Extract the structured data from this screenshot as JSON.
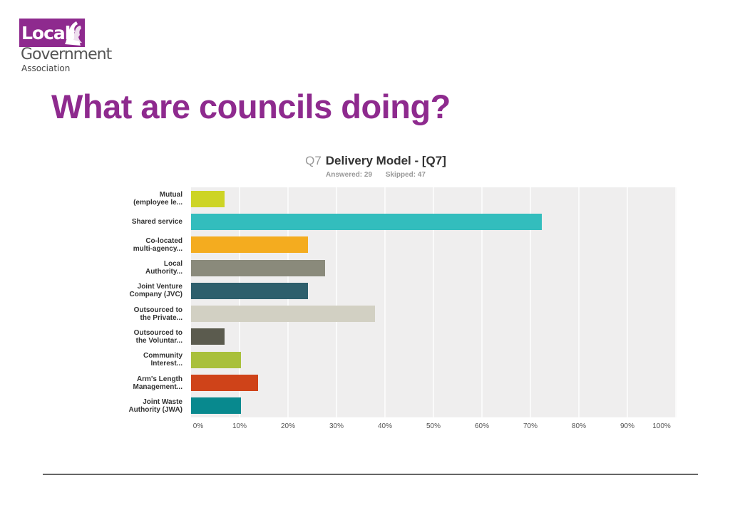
{
  "logo": {
    "line1": "Local",
    "line2": "Government",
    "line3": "Association"
  },
  "slide_title": "What are councils doing?",
  "chart_data": {
    "type": "bar",
    "orientation": "horizontal",
    "title_prefix": "Q7",
    "title": "Delivery Model - [Q7]",
    "answered": "Answered: 29",
    "skipped": "Skipped: 47",
    "categories": [
      "Mutual (employee le...",
      "Shared service",
      "Co-located multi-agency...",
      "Local Authority...",
      "Joint Venture Company (JVC)",
      "Outsourced to the Private...",
      "Outsourced to the Voluntar...",
      "Community Interest...",
      "Arm's Length Management...",
      "Joint Waste Authority (JWA)"
    ],
    "label_lines": [
      [
        "Mutual",
        "(employee le..."
      ],
      [
        "Shared service"
      ],
      [
        "Co-located",
        "multi-agency..."
      ],
      [
        "Local",
        "Authority..."
      ],
      [
        "Joint Venture",
        "Company (JVC)"
      ],
      [
        "Outsourced to",
        "the Private..."
      ],
      [
        "Outsourced to",
        "the Voluntar..."
      ],
      [
        "Community",
        "Interest..."
      ],
      [
        "Arm's Length",
        "Management..."
      ],
      [
        "Joint Waste",
        "Authority (JWA)"
      ]
    ],
    "values": [
      6.9,
      72.4,
      24.1,
      27.6,
      24.1,
      37.9,
      6.9,
      10.3,
      13.8,
      10.3
    ],
    "colors": [
      "#cdd425",
      "#33bdbd",
      "#f4ac1f",
      "#8a8a7b",
      "#2e5f6c",
      "#d2d0c3",
      "#5b5b4e",
      "#a9c03b",
      "#cf4319",
      "#08898e"
    ],
    "xlabel": "",
    "ylabel": "",
    "xlim": [
      0,
      100
    ],
    "xticks": [
      "0%",
      "10%",
      "20%",
      "30%",
      "40%",
      "50%",
      "60%",
      "70%",
      "80%",
      "90%",
      "100%"
    ],
    "grid": true,
    "legend": "none"
  }
}
